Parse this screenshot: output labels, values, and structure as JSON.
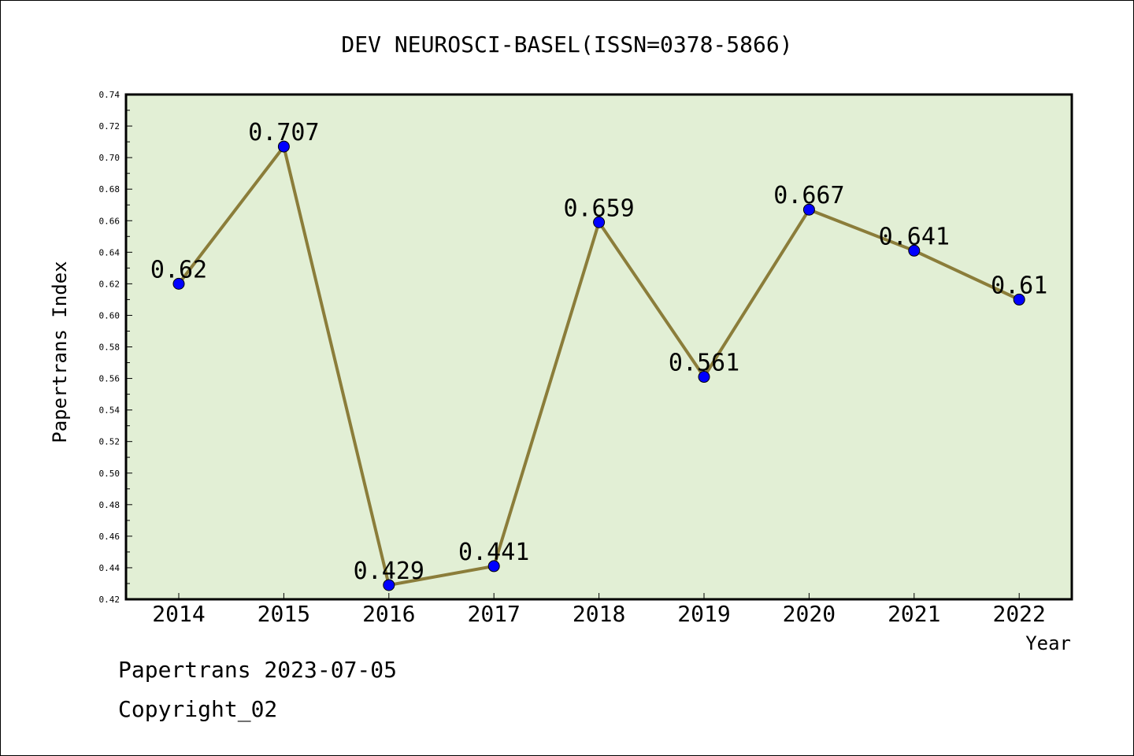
{
  "chart_data": {
    "type": "line",
    "title": "DEV NEUROSCI-BASEL(ISSN=0378-5866)",
    "xlabel": "Year",
    "ylabel": "Papertrans Index",
    "categories": [
      "2014",
      "2015",
      "2016",
      "2017",
      "2018",
      "2019",
      "2020",
      "2021",
      "2022"
    ],
    "series": [
      {
        "values": [
          0.62,
          0.707,
          0.429,
          0.441,
          0.659,
          0.561,
          0.667,
          0.641,
          0.61
        ],
        "data_labels": [
          "0.62",
          "0.707",
          "0.429",
          "0.441",
          "0.659",
          "0.561",
          "0.667",
          "0.641",
          "0.61"
        ]
      }
    ],
    "ylim": [
      0.42,
      0.74
    ],
    "yticks": [
      "0.42",
      "0.44",
      "0.46",
      "0.48",
      "0.50",
      "0.52",
      "0.54",
      "0.56",
      "0.58",
      "0.60",
      "0.62",
      "0.64",
      "0.66",
      "0.68",
      "0.70",
      "0.72",
      "0.74"
    ],
    "grid": false,
    "legend": "none",
    "colors": {
      "plot_background": "#e2efd5",
      "line": "#8b7d3a",
      "marker": "#0000ff",
      "axes": "#000000"
    }
  },
  "footer": {
    "line1": "Papertrans 2023-07-05",
    "line2": "Copyright_02"
  }
}
